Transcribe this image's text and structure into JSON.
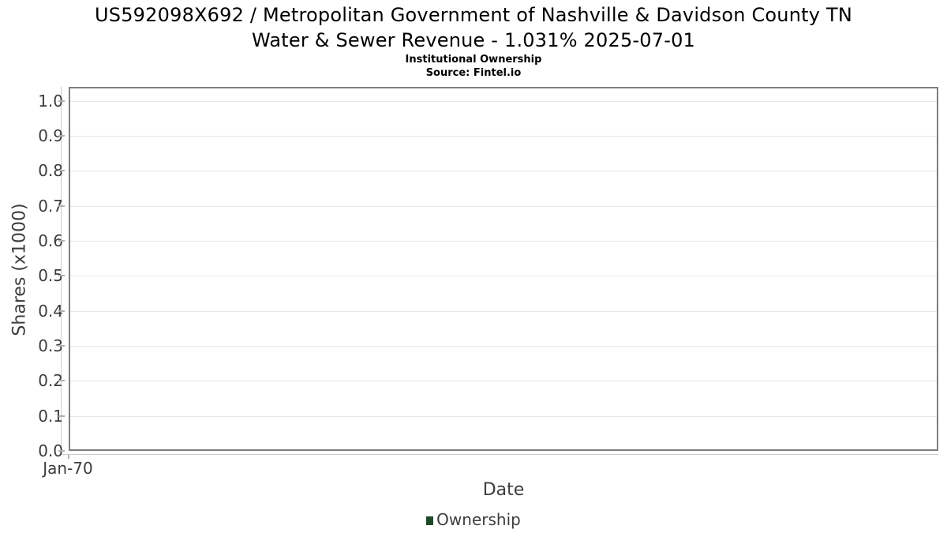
{
  "title": {
    "line1": "US592098X692 / Metropolitan Government of Nashville & Davidson County TN",
    "line2": "Water & Sewer Revenue - 1.031% 2025-07-01",
    "subtitle": "Institutional Ownership",
    "source": "Source: Fintel.io"
  },
  "chart_data": {
    "type": "line",
    "title": "US592098X692 / Metropolitan Government of Nashville & Davidson County TN Water & Sewer Revenue - 1.031% 2025-07-01",
    "subtitle": "Institutional Ownership",
    "source": "Source: Fintel.io",
    "xlabel": "Date",
    "ylabel": "Shares (x1000)",
    "ylim": [
      0.0,
      1.04
    ],
    "yticks": [
      0.0,
      0.1,
      0.2,
      0.3,
      0.4,
      0.5,
      0.6,
      0.7,
      0.8,
      0.9,
      1.0
    ],
    "xticks": [
      "Jan-70"
    ],
    "grid": true,
    "legend_position": "bottom-center",
    "series": [
      {
        "name": "Ownership",
        "color": "#1e4a2b",
        "x": [],
        "values": []
      }
    ]
  },
  "legend": {
    "items": [
      {
        "label": "Ownership",
        "color": "#1e4a2b"
      }
    ]
  },
  "colors": {
    "plot_border": "#7f7f7f",
    "gridline": "#e8e8e8",
    "axis_line": "#cccccc",
    "tick_mark": "#b0b0b0",
    "tick_text": "#3d3d3d",
    "title_text": "#000000",
    "legend_marker": "#1e4a2b",
    "background": "#ffffff"
  }
}
